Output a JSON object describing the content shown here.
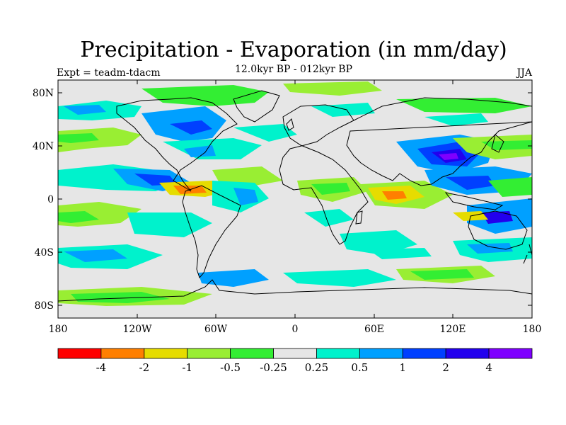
{
  "title": "Precipitation - Evaporation (in mm/day)",
  "left_label": "Expt = teadm-tdacm",
  "center_label": "12.0kyr BP - 012kyr BP",
  "right_label": "JJA",
  "lat_ticks": [
    "80N",
    "40N",
    "0",
    "40S",
    "80S"
  ],
  "lon_ticks": [
    "180",
    "120W",
    "60W",
    "0",
    "60E",
    "120E",
    "180"
  ],
  "colorbar": {
    "colors": [
      "#ff0000",
      "#ff7f00",
      "#e6dc00",
      "#99ee33",
      "#33ee33",
      "#e6e6e6",
      "#00f2cc",
      "#00a0ff",
      "#0040ff",
      "#2200ee",
      "#7f00ff"
    ],
    "labels": [
      "-4",
      "-2",
      "-1",
      "-0.5",
      "-0.25",
      "0.25",
      "0.5",
      "1",
      "2",
      "4"
    ]
  },
  "colors": {
    "background": "#e6e6e6",
    "coastline": "#000000"
  }
}
